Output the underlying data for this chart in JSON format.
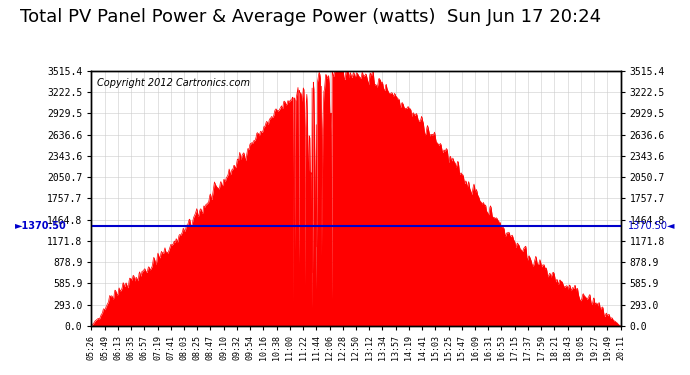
{
  "title": "Total PV Panel Power & Average Power (watts)  Sun Jun 17 20:24",
  "copyright": "Copyright 2012 Cartronics.com",
  "avg_power": 1370.5,
  "ymax": 3515.4,
  "yticks": [
    0.0,
    293.0,
    585.9,
    878.9,
    1171.8,
    1464.8,
    1757.7,
    2050.7,
    2343.6,
    2636.6,
    2929.5,
    3222.5,
    3515.4
  ],
  "fill_color": "#FF0000",
  "line_color": "#FF0000",
  "avg_line_color": "#0000CC",
  "background_color": "#FFFFFF",
  "grid_color": "#CCCCCC",
  "title_fontsize": 13,
  "copyright_fontsize": 7,
  "x_labels": [
    "05:26",
    "05:49",
    "06:13",
    "06:35",
    "06:57",
    "07:19",
    "07:41",
    "08:03",
    "08:25",
    "08:47",
    "09:10",
    "09:32",
    "09:54",
    "10:16",
    "10:38",
    "11:00",
    "11:22",
    "11:44",
    "12:06",
    "12:28",
    "12:50",
    "13:12",
    "13:34",
    "13:57",
    "14:19",
    "14:41",
    "15:03",
    "15:25",
    "15:47",
    "16:09",
    "16:31",
    "16:53",
    "17:15",
    "17:37",
    "17:59",
    "18:21",
    "18:43",
    "19:05",
    "19:27",
    "19:49",
    "20:11"
  ]
}
